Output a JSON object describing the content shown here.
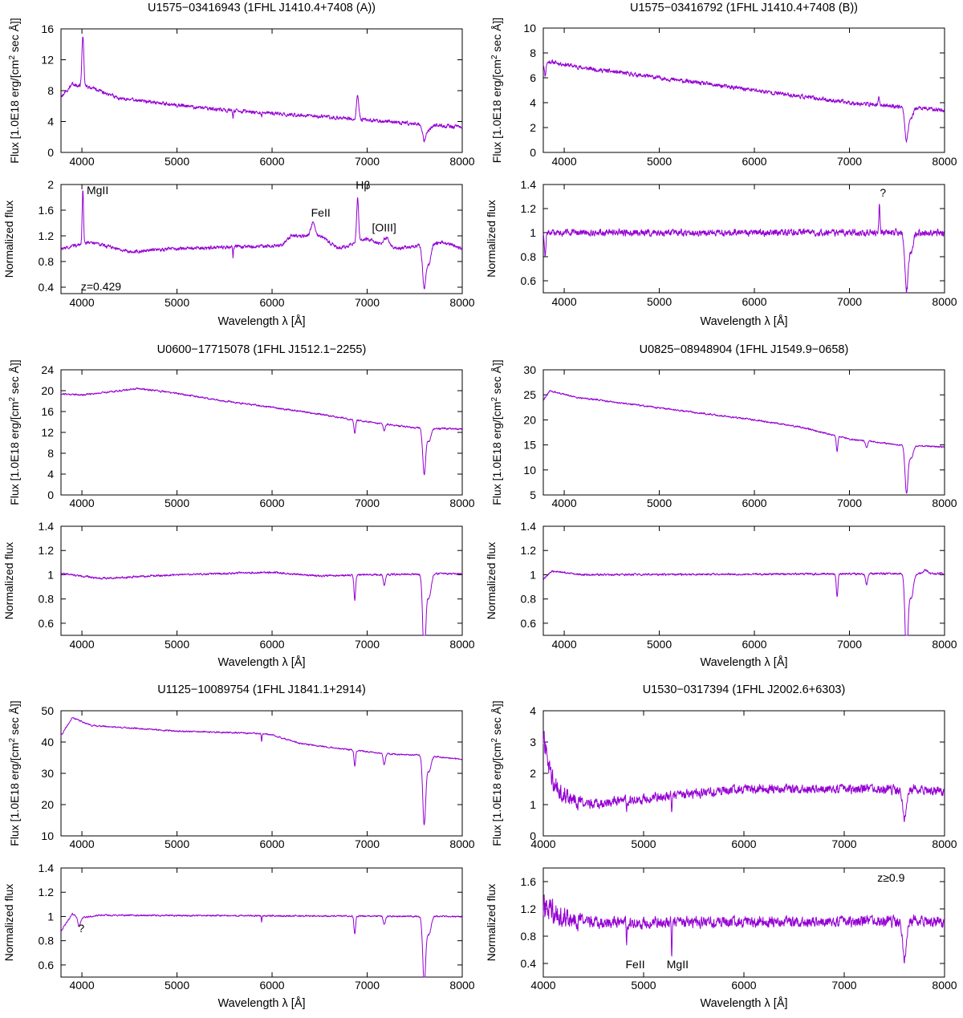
{
  "figure": {
    "series_color": "#9400D3",
    "xlabel": "Wavelength λ [Å]",
    "ylabel_flux_prefix": "Flux [1.0E18 erg/[cm",
    "ylabel_flux_sup": "2",
    "ylabel_flux_suffix": " sec Å]]",
    "ylabel_norm": "Normalized flux"
  },
  "chart_data": [
    {
      "id": "p1",
      "type": "line",
      "title": "U1575−03416943 (1FHL J1410.4+7408 (A))",
      "flux": {
        "xlim": [
          3780,
          8000
        ],
        "ylim": [
          0,
          16
        ],
        "xticks": [
          4000,
          5000,
          6000,
          7000,
          8000
        ],
        "yticks": [
          0,
          4,
          8,
          12,
          16
        ],
        "shape": [
          [
            3780,
            7.2
          ],
          [
            3900,
            8.8
          ],
          [
            4100,
            8.4
          ],
          [
            4400,
            7.0
          ],
          [
            4800,
            6.4
          ],
          [
            5200,
            5.8
          ],
          [
            5600,
            5.4
          ],
          [
            6000,
            5.1
          ],
          [
            6400,
            4.7
          ],
          [
            6800,
            4.4
          ],
          [
            7200,
            4.0
          ],
          [
            7600,
            3.6
          ],
          [
            8000,
            3.3
          ]
        ],
        "noise": 0.35,
        "features": [
          [
            4010,
            6.5,
            14
          ],
          [
            6900,
            3.0,
            18
          ],
          [
            7600,
            -2.0,
            25
          ],
          [
            7650,
            -0.7,
            30
          ],
          [
            6870,
            -0.5,
            8
          ],
          [
            5590,
            -0.8,
            5
          ],
          [
            5890,
            -0.6,
            5
          ]
        ]
      },
      "norm": {
        "xlim": [
          3780,
          8000
        ],
        "ylim": [
          0.3,
          2.0
        ],
        "xticks": [
          4000,
          5000,
          6000,
          7000,
          8000
        ],
        "yticks": [
          0.4,
          0.8,
          1.2,
          1.6,
          2
        ],
        "shape": [
          [
            3780,
            1.0
          ],
          [
            4100,
            1.1
          ],
          [
            4500,
            0.95
          ],
          [
            5000,
            1.0
          ],
          [
            6100,
            1.05
          ],
          [
            6200,
            1.2
          ],
          [
            6500,
            1.2
          ],
          [
            6700,
            1.0
          ],
          [
            7000,
            1.15
          ],
          [
            7300,
            1.0
          ],
          [
            7800,
            1.1
          ],
          [
            8000,
            1.0
          ]
        ],
        "noise": 0.04,
        "features": [
          [
            4010,
            0.85,
            10
          ],
          [
            6900,
            0.7,
            15
          ],
          [
            7600,
            -0.65,
            25
          ],
          [
            7650,
            -0.3,
            30
          ],
          [
            6430,
            0.2,
            30
          ],
          [
            7200,
            0.12,
            40
          ],
          [
            5590,
            -0.15,
            5
          ]
        ]
      },
      "annotations": [
        {
          "label": "MgII",
          "x": 4050,
          "y": 1.85
        },
        {
          "label": "FeII",
          "x": 6410,
          "y": 1.5
        },
        {
          "label": "Hβ",
          "x": 6880,
          "y": 1.93
        },
        {
          "label": "[OIII]",
          "x": 7050,
          "y": 1.27
        },
        {
          "label": "z=0.429",
          "x": 3990,
          "y": 0.35
        }
      ]
    },
    {
      "id": "p2",
      "type": "line",
      "title": "U1575−03416792 (1FHL J1410.4+7408 (B))",
      "flux": {
        "xlim": [
          3780,
          8000
        ],
        "ylim": [
          0,
          10
        ],
        "xticks": [
          4000,
          5000,
          6000,
          7000,
          8000
        ],
        "yticks": [
          0,
          2,
          4,
          6,
          8,
          10
        ],
        "shape": [
          [
            3780,
            7.1
          ],
          [
            3850,
            7.3
          ],
          [
            4200,
            6.8
          ],
          [
            5000,
            6.0
          ],
          [
            6000,
            5.0
          ],
          [
            7000,
            4.0
          ],
          [
            8000,
            3.4
          ]
        ],
        "noise": 0.25,
        "features": [
          [
            7600,
            -2.6,
            25
          ],
          [
            7650,
            -0.8,
            30
          ],
          [
            7310,
            0.5,
            10
          ],
          [
            3800,
            -1.0,
            10
          ]
        ]
      },
      "norm": {
        "xlim": [
          3780,
          8000
        ],
        "ylim": [
          0.5,
          1.4
        ],
        "xticks": [
          4000,
          5000,
          6000,
          7000,
          8000
        ],
        "yticks": [
          0.6,
          0.8,
          1,
          1.2,
          1.4
        ],
        "shape": [
          [
            3780,
            1.0
          ],
          [
            8000,
            1.0
          ]
        ],
        "noise": 0.04,
        "features": [
          [
            7600,
            -0.48,
            25
          ],
          [
            7650,
            -0.15,
            30
          ],
          [
            7315,
            0.25,
            8
          ],
          [
            3800,
            -0.2,
            10
          ]
        ]
      },
      "annotations": [
        {
          "label": "?",
          "x": 7320,
          "y": 1.3
        }
      ]
    },
    {
      "id": "p3",
      "type": "line",
      "title": "U0600−17715078 (1FHL J1512.1−2255)",
      "flux": {
        "xlim": [
          3780,
          8000
        ],
        "ylim": [
          0,
          24
        ],
        "xticks": [
          4000,
          5000,
          6000,
          7000,
          8000
        ],
        "yticks": [
          0,
          4,
          8,
          12,
          16,
          20,
          24
        ],
        "shape": [
          [
            3780,
            19.4
          ],
          [
            4000,
            19.2
          ],
          [
            4600,
            20.4
          ],
          [
            5000,
            19.5
          ],
          [
            5500,
            18.0
          ],
          [
            6000,
            16.8
          ],
          [
            6500,
            15.5
          ],
          [
            7000,
            14.0
          ],
          [
            7500,
            12.9
          ],
          [
            8000,
            12.6
          ]
        ],
        "noise": 0.25,
        "features": [
          [
            6870,
            -2.6,
            12
          ],
          [
            7180,
            -1.2,
            15
          ],
          [
            7600,
            -8.8,
            22
          ],
          [
            7650,
            -2.4,
            30
          ]
        ]
      },
      "norm": {
        "xlim": [
          3780,
          8000
        ],
        "ylim": [
          0.5,
          1.4
        ],
        "xticks": [
          4000,
          5000,
          6000,
          7000,
          8000
        ],
        "yticks": [
          0.6,
          0.8,
          1,
          1.2,
          1.4
        ],
        "shape": [
          [
            3780,
            1.01
          ],
          [
            4200,
            0.97
          ],
          [
            5000,
            1.0
          ],
          [
            6000,
            1.02
          ],
          [
            6500,
            0.99
          ],
          [
            7000,
            1.0
          ],
          [
            8000,
            1.01
          ]
        ],
        "noise": 0.012,
        "features": [
          [
            6870,
            -0.2,
            12
          ],
          [
            7180,
            -0.09,
            15
          ],
          [
            7600,
            -0.7,
            22
          ],
          [
            7650,
            -0.2,
            30
          ]
        ]
      },
      "annotations": []
    },
    {
      "id": "p4",
      "type": "line",
      "title": "U0825−08948904 (1FHL J1549.9−0658)",
      "flux": {
        "xlim": [
          3780,
          8000
        ],
        "ylim": [
          5,
          30
        ],
        "xticks": [
          4000,
          5000,
          6000,
          7000,
          8000
        ],
        "yticks": [
          5,
          10,
          15,
          20,
          25,
          30
        ],
        "shape": [
          [
            3780,
            24.0
          ],
          [
            3850,
            25.8
          ],
          [
            4100,
            24.6
          ],
          [
            5000,
            22.4
          ],
          [
            6000,
            20.0
          ],
          [
            6500,
            18.5
          ],
          [
            7000,
            16.2
          ],
          [
            7500,
            15.0
          ],
          [
            8000,
            14.6
          ]
        ],
        "noise": 0.25,
        "features": [
          [
            6870,
            -3.0,
            12
          ],
          [
            7180,
            -1.2,
            15
          ],
          [
            7600,
            -9.5,
            22
          ],
          [
            7650,
            -2.5,
            30
          ]
        ]
      },
      "norm": {
        "xlim": [
          3780,
          8000
        ],
        "ylim": [
          0.5,
          1.4
        ],
        "xticks": [
          4000,
          5000,
          6000,
          7000,
          8000
        ],
        "yticks": [
          0.6,
          0.8,
          1,
          1.2,
          1.4
        ],
        "shape": [
          [
            3780,
            0.96
          ],
          [
            3870,
            1.03
          ],
          [
            4200,
            1.0
          ],
          [
            8000,
            1.01
          ]
        ],
        "noise": 0.012,
        "features": [
          [
            6870,
            -0.19,
            12
          ],
          [
            7180,
            -0.09,
            15
          ],
          [
            7600,
            -0.7,
            22
          ],
          [
            7650,
            -0.2,
            30
          ],
          [
            7800,
            0.03,
            30
          ]
        ]
      },
      "annotations": []
    },
    {
      "id": "p5",
      "type": "line",
      "title": "U1125−10089754 (1FHL J1841.1+2914)",
      "flux": {
        "xlim": [
          3780,
          8000
        ],
        "ylim": [
          10,
          50
        ],
        "xticks": [
          4000,
          5000,
          6000,
          7000,
          8000
        ],
        "yticks": [
          10,
          20,
          30,
          40,
          50
        ],
        "shape": [
          [
            3780,
            42.0
          ],
          [
            3900,
            47.8
          ],
          [
            4100,
            45.3
          ],
          [
            5000,
            43.5
          ],
          [
            5800,
            42.8
          ],
          [
            6000,
            42.3
          ],
          [
            6300,
            39.5
          ],
          [
            6800,
            37.6
          ],
          [
            7200,
            36.2
          ],
          [
            7600,
            35.8
          ],
          [
            8000,
            34.4
          ]
        ],
        "noise": 0.35,
        "features": [
          [
            5890,
            -2.5,
            5
          ],
          [
            6870,
            -5.0,
            12
          ],
          [
            7180,
            -3.5,
            15
          ],
          [
            7600,
            -22.0,
            22
          ],
          [
            7650,
            -5.0,
            30
          ]
        ]
      },
      "norm": {
        "xlim": [
          3780,
          8000
        ],
        "ylim": [
          0.5,
          1.4
        ],
        "xticks": [
          4000,
          5000,
          6000,
          7000,
          8000
        ],
        "yticks": [
          0.6,
          0.8,
          1,
          1.2,
          1.4
        ],
        "shape": [
          [
            3780,
            0.88
          ],
          [
            3900,
            1.02
          ],
          [
            4000,
            0.99
          ],
          [
            4200,
            1.01
          ],
          [
            8000,
            1.0
          ]
        ],
        "noise": 0.01,
        "features": [
          [
            5890,
            -0.05,
            5
          ],
          [
            6870,
            -0.15,
            12
          ],
          [
            7180,
            -0.07,
            15
          ],
          [
            7600,
            -0.55,
            22
          ],
          [
            7650,
            -0.15,
            30
          ],
          [
            3970,
            -0.08,
            20
          ]
        ]
      },
      "annotations": [
        {
          "label": "?",
          "x": 3960,
          "y": 0.87
        }
      ]
    },
    {
      "id": "p6",
      "type": "line",
      "title": "U1530−0317394 (1FHL J2002.6+6303)",
      "flux": {
        "xlim": [
          4000,
          8000
        ],
        "ylim": [
          0,
          4
        ],
        "xticks": [
          4000,
          5000,
          6000,
          7000,
          8000
        ],
        "yticks": [
          0,
          1,
          2,
          3,
          4
        ],
        "shape": [
          [
            4000,
            3.1
          ],
          [
            4080,
            1.8
          ],
          [
            4200,
            1.3
          ],
          [
            4400,
            1.0
          ],
          [
            5000,
            1.2
          ],
          [
            5500,
            1.35
          ],
          [
            6000,
            1.5
          ],
          [
            7000,
            1.5
          ],
          [
            8000,
            1.45
          ]
        ],
        "noise": 0.22,
        "features": [
          [
            7600,
            -0.9,
            25
          ],
          [
            5280,
            -0.5,
            5
          ],
          [
            4830,
            -0.4,
            5
          ]
        ]
      },
      "norm": {
        "xlim": [
          4000,
          8000
        ],
        "ylim": [
          0.2,
          1.8
        ],
        "xticks": [
          4000,
          5000,
          6000,
          7000,
          8000
        ],
        "yticks": [
          0.4,
          0.8,
          1.2,
          1.6
        ],
        "shape": [
          [
            4000,
            1.2
          ],
          [
            4300,
            1.02
          ],
          [
            4800,
            1.0
          ],
          [
            8000,
            1.02
          ]
        ],
        "noise": 0.12,
        "features": [
          [
            7600,
            -0.55,
            25
          ],
          [
            5280,
            -0.5,
            5
          ],
          [
            4830,
            -0.35,
            5
          ]
        ]
      },
      "annotations": [
        {
          "label": "FeII",
          "x": 4820,
          "y": 0.33
        },
        {
          "label": "MgII",
          "x": 5230,
          "y": 0.33
        },
        {
          "label": "z≥0.9",
          "x": 7330,
          "y": 1.6
        }
      ]
    }
  ]
}
